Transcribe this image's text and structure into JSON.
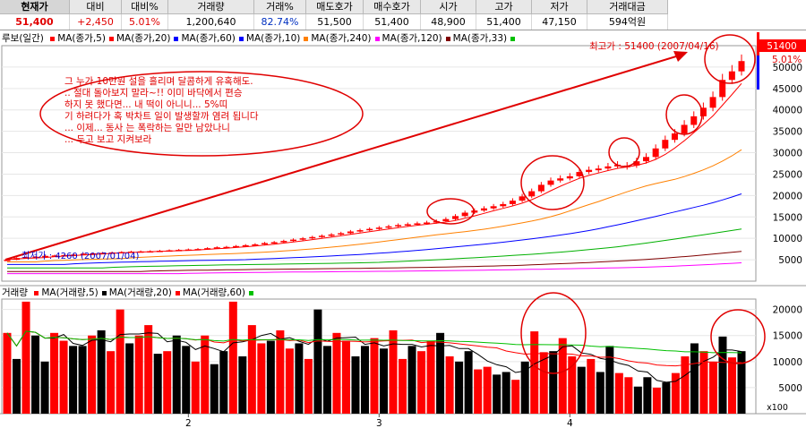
{
  "ticker": {
    "headers": [
      "현재가",
      "대비",
      "대비%",
      "거래량",
      "거래%",
      "매도호가",
      "매수호가",
      "시가",
      "고가",
      "저가",
      "거래대금"
    ],
    "values": [
      "51,400",
      "+2,450",
      "5.01%",
      "1,200,640",
      "82.74%",
      "51,500",
      "51,400",
      "48,900",
      "51,400",
      "47,150",
      "594억원"
    ]
  },
  "price_panel": {
    "title": "루보(일간)",
    "ma_lines": [
      {
        "label": "MA(종가,5)",
        "color": "#ff0000"
      },
      {
        "label": "MA(종가,20)",
        "color": "#ff0000"
      },
      {
        "label": "MA(종가,60)",
        "color": "#0000ff"
      },
      {
        "label": "MA(종가,10)",
        "color": "#0000ff"
      },
      {
        "label": "MA(종가,240)",
        "color": "#ff8000"
      },
      {
        "label": "MA(종가,120)",
        "color": "#ff00ff"
      },
      {
        "label": "MA(종가,33)",
        "color": "#800000"
      },
      {
        "label": "",
        "color": "#00c000"
      }
    ],
    "high_label": "최고가 : 51400 (2007/04/16)",
    "low_label": "최저가 : 4260 (2007/01/04)",
    "last_price": "51400",
    "last_pct": "5.01%",
    "note": "그 누가 10만원 설을 흘리며 달콤하게 유혹해도... 절대 돌아보지 말라~!! 이미 바닥에서 편승하지 못 했다면... 내 떡이 아니니... 5%띠기 하려다가 혹 박차트 일이 발생할까 염려 됩니다... 이제... 동사 는 폭락하는 일만 남았나니... 두고 보고 지켜보라"
  },
  "volume_panel": {
    "title": "거래량",
    "ma_lines": [
      {
        "label": "MA(거래량,5)",
        "color": "#ff0000"
      },
      {
        "label": "MA(거래량,20)",
        "color": "#000000"
      },
      {
        "label": "MA(거래량,60)",
        "color": "#ff0000"
      },
      {
        "label": "",
        "color": "#00c000"
      }
    ],
    "scale_label": "x100"
  },
  "colors": {
    "up": "#ff0000",
    "down": "#000000",
    "annotation": "#e00000"
  },
  "chart_data": [
    {
      "type": "candlestick",
      "title": "루보(일간)",
      "x_ticks": [
        "2",
        "3",
        "4"
      ],
      "y_ticks": [
        5000,
        10000,
        15000,
        20000,
        25000,
        30000,
        35000,
        40000,
        45000,
        50000
      ],
      "ylim": [
        0,
        55000
      ],
      "close_approx": [
        5000,
        5400,
        5600,
        5700,
        5900,
        6000,
        6100,
        6200,
        6400,
        6500,
        6600,
        6700,
        6800,
        6900,
        6950,
        7000,
        7100,
        7200,
        7300,
        7400,
        7500,
        7700,
        7900,
        8000,
        8200,
        8400,
        8600,
        8900,
        9100,
        9400,
        9700,
        10000,
        10300,
        10600,
        10900,
        11200,
        11600,
        11900,
        12200,
        12500,
        12800,
        13100,
        13300,
        13500,
        13700,
        14000,
        14500,
        15200,
        16000,
        16500,
        17000,
        17500,
        18000,
        18800,
        19800,
        21000,
        22500,
        23500,
        24000,
        24500,
        25500,
        26000,
        26300,
        26800,
        27200,
        27000,
        28000,
        29000,
        31000,
        33000,
        34500,
        36500,
        38500,
        40500,
        43000,
        47000,
        49000,
        51400
      ],
      "last_close": 51400
    },
    {
      "type": "bar",
      "title": "거래량",
      "y_ticks": [
        5000,
        10000,
        15000,
        20000
      ],
      "ylim": [
        0,
        22000
      ],
      "values": [
        15500,
        10500,
        21500,
        15000,
        10000,
        15500,
        14000,
        13000,
        13000,
        15000,
        16000,
        12000,
        20000,
        13500,
        15000,
        17000,
        11500,
        12000,
        15000,
        13000,
        10000,
        15000,
        9500,
        12000,
        21500,
        11000,
        17000,
        13500,
        14000,
        16000,
        12500,
        13500,
        10500,
        20000,
        13000,
        15500,
        14000,
        11000,
        13000,
        14500,
        12500,
        16000,
        10500,
        13000,
        12000,
        14000,
        15500,
        11000,
        10000,
        12000,
        8500,
        9000,
        7500,
        8000,
        6500,
        10000,
        15800,
        11800,
        12000,
        14500,
        11000,
        9000,
        10500,
        8000,
        13000,
        7800,
        7000,
        5200,
        7000,
        5000,
        6000,
        7800,
        11000,
        13500,
        12000,
        10000,
        14800,
        10800,
        12000
      ]
    }
  ]
}
